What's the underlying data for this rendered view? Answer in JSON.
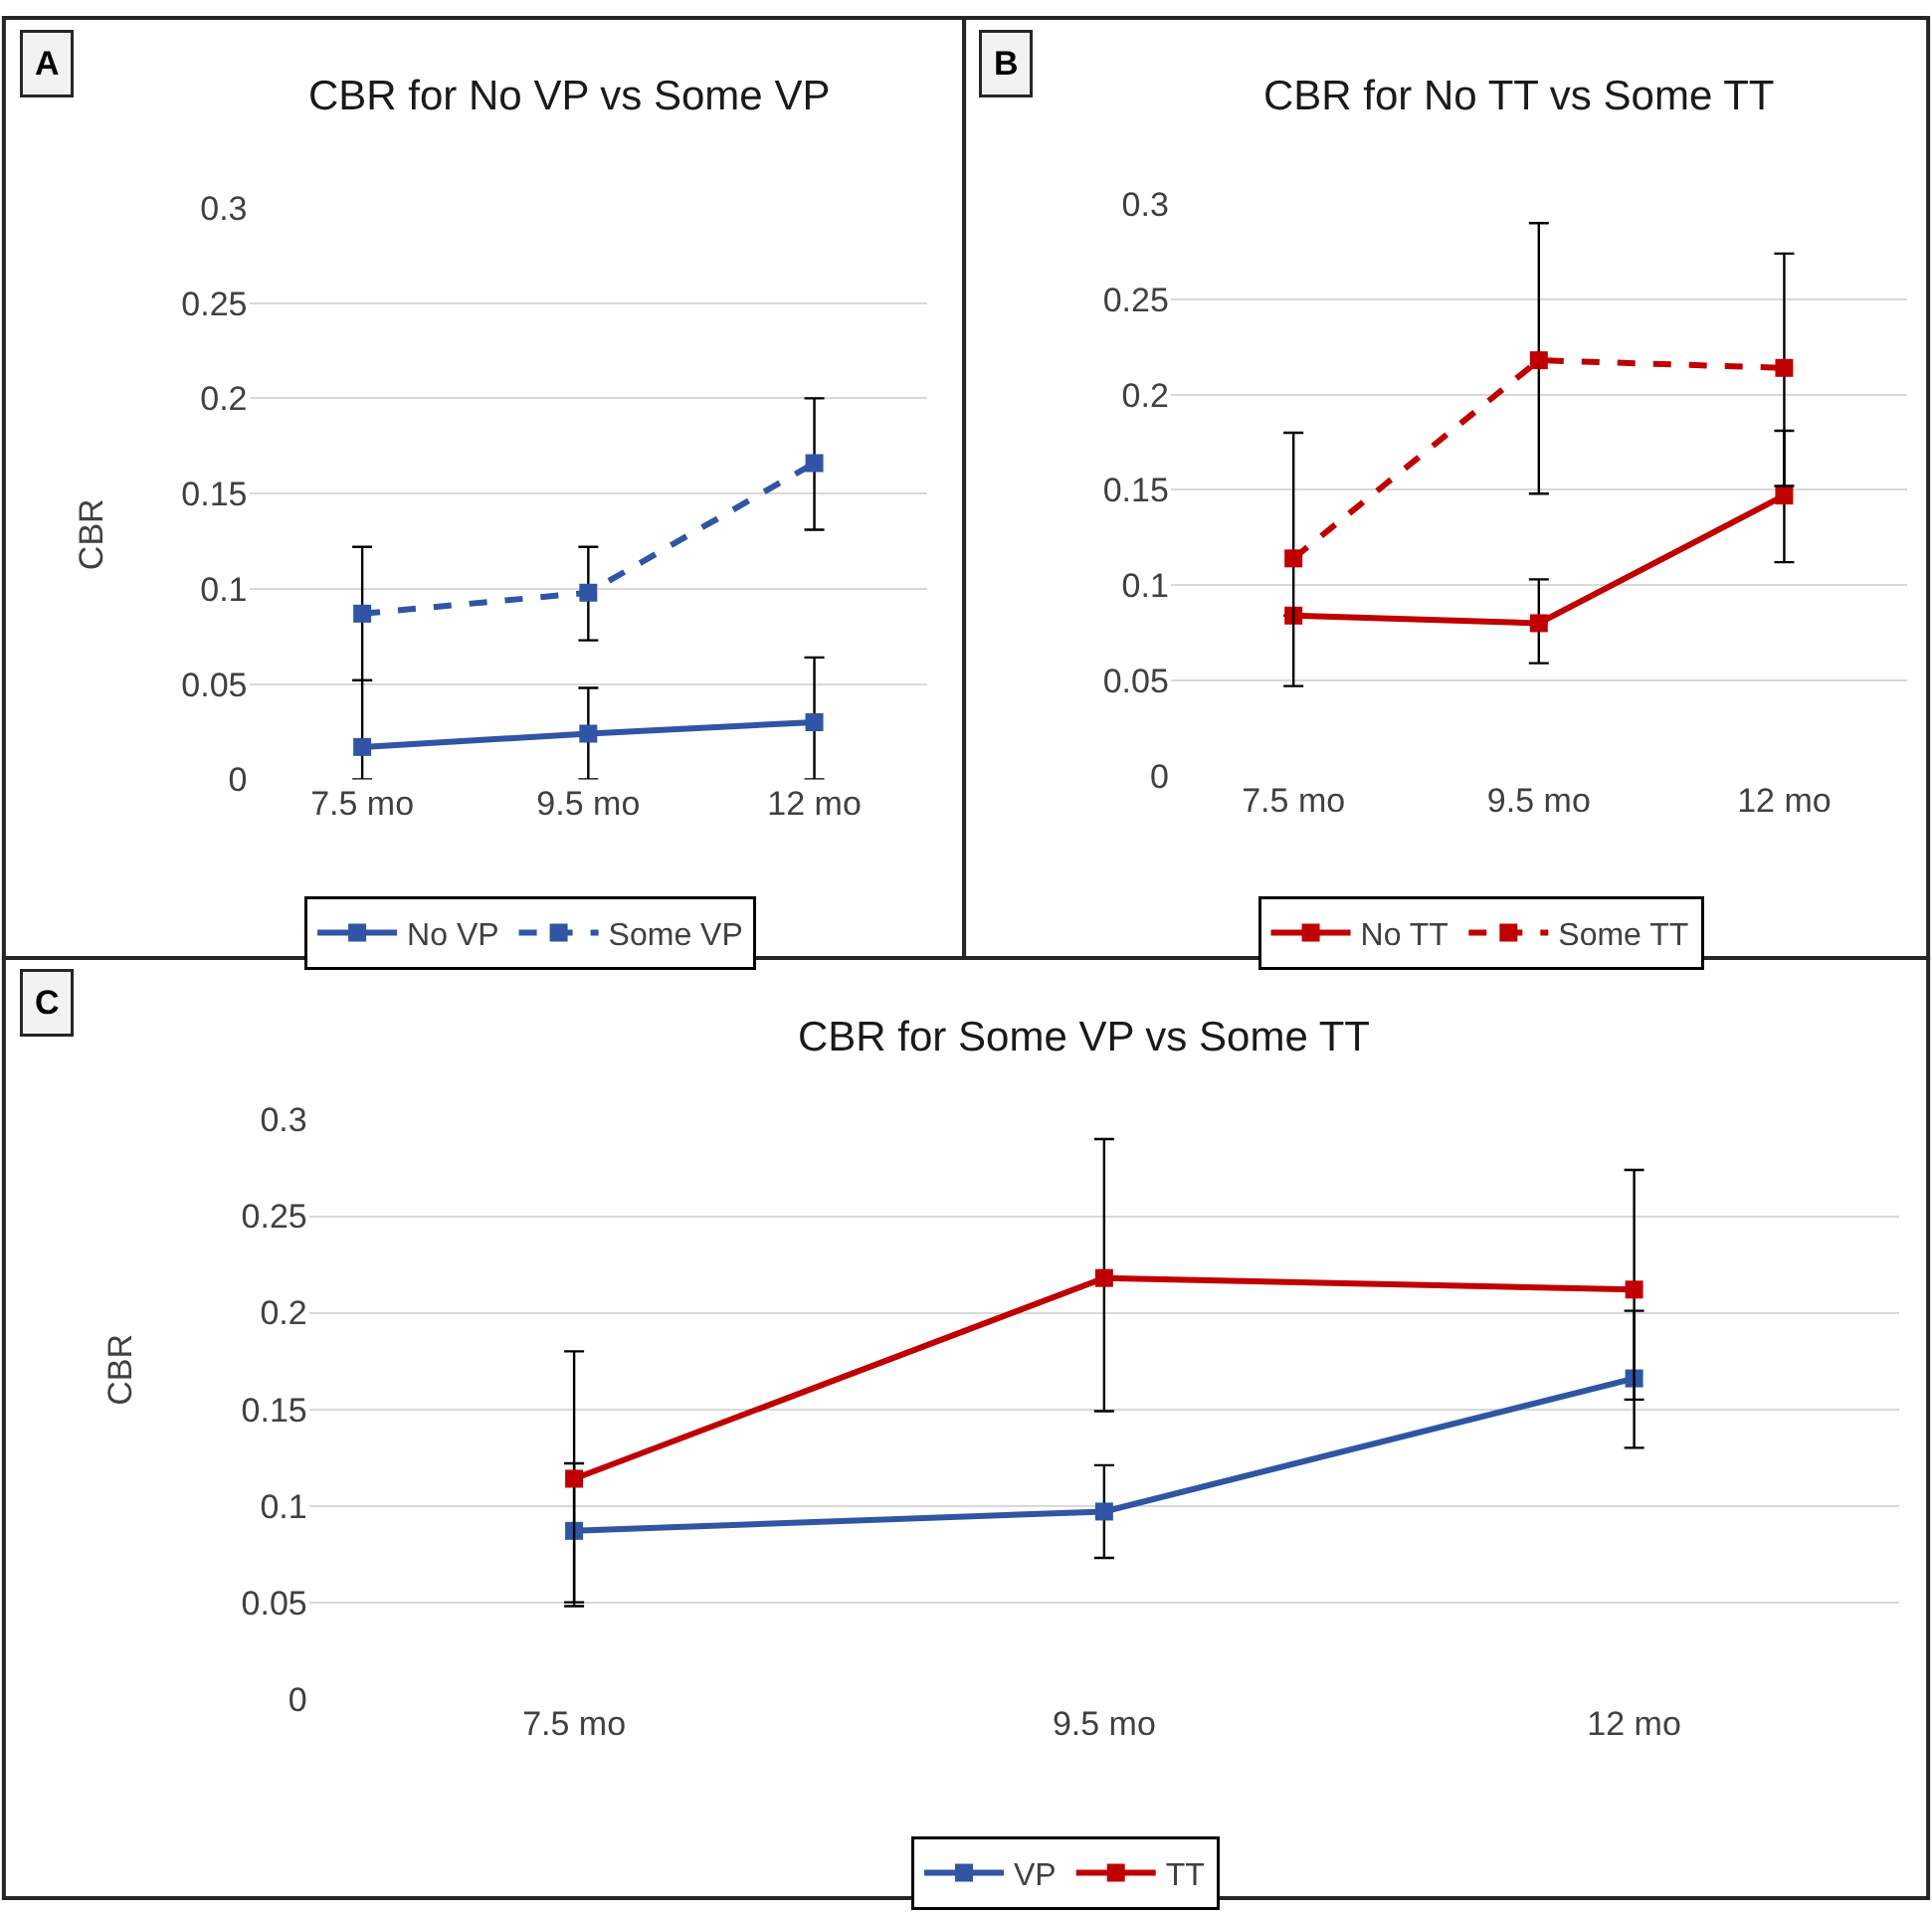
{
  "chart_data": [
    {
      "type": "line",
      "title": "CBR for No VP vs Some VP",
      "ylabel": "CBR",
      "annotations": [
        "A"
      ],
      "categories": [
        "7.5 mo",
        "9.5 mo",
        "12 mo"
      ],
      "ylim": [
        0,
        0.3
      ],
      "yticks": [
        0,
        0.05,
        0.1,
        0.15,
        0.2,
        0.25,
        0.3
      ],
      "grid": "y",
      "legend": "bottom",
      "marker": "square",
      "series": [
        {
          "name": "No VP",
          "color": "#2f55a4",
          "line_style": "solid",
          "values": [
            0.017,
            0.024,
            0.03
          ],
          "errors": [
            [
              0,
              0.052
            ],
            [
              0,
              0.048
            ],
            [
              0,
              0.064
            ]
          ]
        },
        {
          "name": "Some VP",
          "color": "#2f55a4",
          "line_style": "dashed",
          "values": [
            0.087,
            0.098,
            0.166
          ],
          "errors": [
            [
              0.052,
              0.122
            ],
            [
              0.073,
              0.122
            ],
            [
              0.131,
              0.2
            ]
          ]
        }
      ]
    },
    {
      "type": "line",
      "title": "CBR for No TT vs Some TT",
      "annotations": [
        "B"
      ],
      "categories": [
        "7.5 mo",
        "9.5 mo",
        "12 mo"
      ],
      "ylim": [
        0,
        0.3
      ],
      "yticks": [
        0,
        0.05,
        0.1,
        0.15,
        0.2,
        0.25,
        0.3
      ],
      "grid": "y",
      "legend": "bottom",
      "marker": "square",
      "series": [
        {
          "name": "No TT",
          "color": "#c00000",
          "line_style": "solid",
          "values": [
            0.084,
            0.08,
            0.147
          ],
          "errors": [
            null,
            [
              0.059,
              0.103
            ],
            [
              0.112,
              0.181
            ]
          ]
        },
        {
          "name": "Some TT",
          "color": "#c00000",
          "line_style": "dashed",
          "values": [
            0.114,
            0.218,
            0.214
          ],
          "errors": [
            [
              0.047,
              0.18
            ],
            [
              0.148,
              0.29
            ],
            [
              0.152,
              0.274
            ]
          ]
        }
      ]
    },
    {
      "type": "line",
      "title": "CBR for Some VP vs Some TT",
      "ylabel": "CBR",
      "annotations": [
        "C"
      ],
      "categories": [
        "7.5 mo",
        "9.5 mo",
        "12 mo"
      ],
      "ylim": [
        0,
        0.3
      ],
      "yticks": [
        0,
        0.05,
        0.1,
        0.15,
        0.2,
        0.25,
        0.3
      ],
      "grid": "y",
      "legend": "bottom",
      "marker": "square",
      "series": [
        {
          "name": "VP",
          "color": "#2f55a4",
          "line_style": "solid",
          "values": [
            0.087,
            0.097,
            0.166
          ],
          "errors": [
            [
              0.05,
              0.122
            ],
            [
              0.073,
              0.121
            ],
            [
              0.13,
              0.201
            ]
          ]
        },
        {
          "name": "TT",
          "color": "#c00000",
          "line_style": "solid",
          "values": [
            0.114,
            0.218,
            0.212
          ],
          "errors": [
            [
              0.048,
              0.18
            ],
            [
              0.149,
              0.29
            ],
            [
              0.155,
              0.274
            ]
          ]
        }
      ]
    }
  ]
}
